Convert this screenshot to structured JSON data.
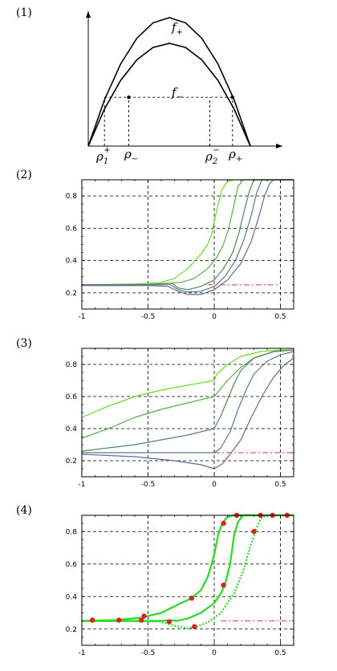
{
  "panels": {
    "p1": {
      "label": "(1)"
    },
    "p2": {
      "label": "(2)"
    },
    "p3": {
      "label": "(3)"
    },
    "p4": {
      "label": "(4)"
    }
  },
  "math_labels": {
    "f_plus": {
      "base": "f",
      "sub": "+"
    },
    "f_minus": {
      "base": "f",
      "sub": "−"
    },
    "rho_1_plus": {
      "base": "ρ",
      "sub": "1",
      "sup": "+"
    },
    "rho_minus": {
      "base": "ρ",
      "sub": "−"
    },
    "rho_2_minus": {
      "base": "ρ",
      "sub": "2",
      "sup": "−"
    },
    "rho_plus": {
      "base": "ρ",
      "sub": "+"
    }
  },
  "colors": {
    "green_bright": "#66dd22",
    "green_mid": "#55b044",
    "green_dark": "#4f8a55",
    "slate": "#5a7a80",
    "violet": "#6a62a4",
    "red_dashdot": "#dd3333",
    "marker_red": "#dd2222",
    "curve_green": "#22dd22"
  },
  "chart_data": [
    {
      "type": "line",
      "panel": "(1)",
      "title": "",
      "xlabel": "",
      "ylabel": "",
      "axes_ticks": false,
      "xlim": [
        0,
        1
      ],
      "ylim": [
        0,
        1
      ],
      "series": [
        {
          "values": [
            [
              0,
              0
            ],
            [
              0.1,
              0.36
            ],
            [
              0.2,
              0.64
            ],
            [
              0.3,
              0.84
            ],
            [
              0.4,
              0.96
            ],
            [
              0.5,
              1.0
            ],
            [
              0.6,
              0.96
            ],
            [
              0.7,
              0.84
            ],
            [
              0.8,
              0.64
            ],
            [
              0.9,
              0.36
            ],
            [
              1,
              0
            ]
          ]
        },
        {
          "values": [
            [
              0,
              0
            ],
            [
              0.1,
              0.288
            ],
            [
              0.2,
              0.512
            ],
            [
              0.3,
              0.672
            ],
            [
              0.4,
              0.768
            ],
            [
              0.5,
              0.8
            ],
            [
              0.6,
              0.768
            ],
            [
              0.7,
              0.672
            ],
            [
              0.8,
              0.512
            ],
            [
              0.9,
              0.288
            ],
            [
              1,
              0
            ]
          ]
        }
      ],
      "level_line": 0.38,
      "markers_x": [
        0.25,
        0.89
      ],
      "vertical_guides_x": [
        0.1,
        0.25,
        0.75,
        0.89
      ]
    },
    {
      "type": "line",
      "panel": "(2)",
      "title": "",
      "xlabel": "",
      "ylabel": "",
      "xlim": [
        -1,
        0.6
      ],
      "ylim": [
        0.1,
        0.9
      ],
      "xticks": [
        "-1",
        "-0.5",
        "0",
        "0.5"
      ],
      "xtick_values": [
        -1,
        -0.5,
        0,
        0.5
      ],
      "yticks": [
        "0.2",
        "0.4",
        "0.6",
        "0.8"
      ],
      "ytick_values": [
        0.2,
        0.4,
        0.6,
        0.8
      ],
      "grid": "dashed",
      "ref_lines": [
        0.9,
        0.25
      ],
      "ref_line_span": [
        -0.05,
        0.48
      ],
      "series": [
        {
          "color": "green_bright",
          "values": [
            [
              -1,
              0.25
            ],
            [
              -0.6,
              0.255
            ],
            [
              -0.4,
              0.265
            ],
            [
              -0.3,
              0.29
            ],
            [
              -0.2,
              0.35
            ],
            [
              -0.1,
              0.44
            ],
            [
              -0.05,
              0.5
            ],
            [
              -0.02,
              0.56
            ],
            [
              0,
              0.64
            ],
            [
              0.03,
              0.75
            ],
            [
              0.06,
              0.84
            ],
            [
              0.1,
              0.89
            ],
            [
              0.15,
              0.9
            ],
            [
              0.6,
              0.9
            ]
          ]
        },
        {
          "color": "green_mid",
          "values": [
            [
              -1,
              0.25
            ],
            [
              -0.5,
              0.253
            ],
            [
              -0.35,
              0.26
            ],
            [
              -0.25,
              0.265
            ],
            [
              -0.15,
              0.29
            ],
            [
              -0.05,
              0.35
            ],
            [
              0.02,
              0.42
            ],
            [
              0.07,
              0.5
            ],
            [
              0.11,
              0.6
            ],
            [
              0.15,
              0.75
            ],
            [
              0.18,
              0.86
            ],
            [
              0.22,
              0.9
            ],
            [
              0.6,
              0.9
            ]
          ]
        },
        {
          "color": "green_dark",
          "values": [
            [
              -1,
              0.25
            ],
            [
              -0.5,
              0.25
            ],
            [
              -0.32,
              0.26
            ],
            [
              -0.27,
              0.23
            ],
            [
              -0.2,
              0.22
            ],
            [
              -0.1,
              0.24
            ],
            [
              0,
              0.28
            ],
            [
              0.07,
              0.35
            ],
            [
              0.14,
              0.45
            ],
            [
              0.19,
              0.58
            ],
            [
              0.23,
              0.72
            ],
            [
              0.27,
              0.84
            ],
            [
              0.3,
              0.9
            ],
            [
              0.6,
              0.9
            ]
          ]
        },
        {
          "color": "slate",
          "values": [
            [
              -1,
              0.25
            ],
            [
              -0.5,
              0.25
            ],
            [
              -0.33,
              0.25
            ],
            [
              -0.27,
              0.22
            ],
            [
              -0.2,
              0.205
            ],
            [
              -0.1,
              0.21
            ],
            [
              0,
              0.24
            ],
            [
              0.08,
              0.3
            ],
            [
              0.16,
              0.4
            ],
            [
              0.22,
              0.52
            ],
            [
              0.28,
              0.68
            ],
            [
              0.32,
              0.82
            ],
            [
              0.36,
              0.9
            ],
            [
              0.6,
              0.9
            ]
          ]
        },
        {
          "color": "violet",
          "values": [
            [
              -1,
              0.245
            ],
            [
              -0.5,
              0.245
            ],
            [
              -0.35,
              0.24
            ],
            [
              -0.27,
              0.21
            ],
            [
              -0.2,
              0.19
            ],
            [
              -0.1,
              0.19
            ],
            [
              0,
              0.22
            ],
            [
              0.1,
              0.28
            ],
            [
              0.2,
              0.38
            ],
            [
              0.28,
              0.52
            ],
            [
              0.34,
              0.68
            ],
            [
              0.38,
              0.8
            ],
            [
              0.42,
              0.88
            ],
            [
              0.45,
              0.9
            ],
            [
              0.6,
              0.9
            ]
          ]
        }
      ]
    },
    {
      "type": "line",
      "panel": "(3)",
      "title": "",
      "xlabel": "",
      "ylabel": "",
      "xlim": [
        -1,
        0.6
      ],
      "ylim": [
        0.1,
        0.9
      ],
      "xticks": [
        "-1",
        "-0.5",
        "0",
        "0.5"
      ],
      "xtick_values": [
        -1,
        -0.5,
        0,
        0.5
      ],
      "yticks": [
        "0.2",
        "0.4",
        "0.6",
        "0.8"
      ],
      "ytick_values": [
        0.2,
        0.4,
        0.6,
        0.8
      ],
      "grid": "dashed",
      "ref_lines": [
        0.9,
        0.25
      ],
      "ref_line_span": [
        0.0,
        0.6
      ],
      "series": [
        {
          "color": "green_bright",
          "values": [
            [
              -1,
              0.47
            ],
            [
              -0.8,
              0.54
            ],
            [
              -0.6,
              0.6
            ],
            [
              -0.4,
              0.64
            ],
            [
              -0.2,
              0.67
            ],
            [
              0,
              0.7
            ],
            [
              0.02,
              0.74
            ],
            [
              0.1,
              0.8
            ],
            [
              0.2,
              0.85
            ],
            [
              0.35,
              0.88
            ],
            [
              0.5,
              0.89
            ],
            [
              0.6,
              0.89
            ]
          ]
        },
        {
          "color": "green_mid",
          "values": [
            [
              -1,
              0.34
            ],
            [
              -0.8,
              0.4
            ],
            [
              -0.6,
              0.47
            ],
            [
              -0.4,
              0.52
            ],
            [
              -0.2,
              0.56
            ],
            [
              0,
              0.6
            ],
            [
              0.02,
              0.62
            ],
            [
              0.1,
              0.7
            ],
            [
              0.2,
              0.78
            ],
            [
              0.3,
              0.84
            ],
            [
              0.45,
              0.88
            ],
            [
              0.6,
              0.89
            ]
          ]
        },
        {
          "color": "green_dark",
          "values": [
            [
              -1,
              0.26
            ],
            [
              -0.8,
              0.28
            ],
            [
              -0.6,
              0.3
            ],
            [
              -0.4,
              0.33
            ],
            [
              -0.2,
              0.36
            ],
            [
              0,
              0.4
            ],
            [
              0.05,
              0.48
            ],
            [
              0.1,
              0.58
            ],
            [
              0.15,
              0.68
            ],
            [
              0.2,
              0.76
            ],
            [
              0.3,
              0.84
            ],
            [
              0.45,
              0.88
            ],
            [
              0.6,
              0.89
            ]
          ]
        },
        {
          "color": "slate",
          "values": [
            [
              -1,
              0.25
            ],
            [
              -0.5,
              0.25
            ],
            [
              0,
              0.25
            ],
            [
              0.05,
              0.28
            ],
            [
              0.12,
              0.38
            ],
            [
              0.18,
              0.52
            ],
            [
              0.24,
              0.64
            ],
            [
              0.3,
              0.74
            ],
            [
              0.4,
              0.82
            ],
            [
              0.5,
              0.86
            ],
            [
              0.6,
              0.88
            ]
          ]
        },
        {
          "color": "violet",
          "values": [
            [
              -1,
              0.24
            ],
            [
              -0.6,
              0.225
            ],
            [
              -0.3,
              0.2
            ],
            [
              -0.1,
              0.175
            ],
            [
              0,
              0.15
            ],
            [
              0.06,
              0.18
            ],
            [
              0.12,
              0.24
            ],
            [
              0.2,
              0.33
            ],
            [
              0.28,
              0.47
            ],
            [
              0.36,
              0.6
            ],
            [
              0.44,
              0.71
            ],
            [
              0.52,
              0.79
            ],
            [
              0.6,
              0.84
            ]
          ]
        }
      ]
    },
    {
      "type": "line",
      "panel": "(4)",
      "title": "",
      "xlabel": "",
      "ylabel": "",
      "xlim": [
        -1,
        0.6
      ],
      "ylim": [
        0.1,
        0.9
      ],
      "xticks": [
        "-1",
        "-0.5",
        "0",
        "0.5"
      ],
      "xtick_values": [
        -1,
        -0.5,
        0,
        0.5
      ],
      "yticks": [
        "0.2",
        "0.4",
        "0.6",
        "0.8"
      ],
      "ytick_values": [
        0.2,
        0.4,
        0.6,
        0.8
      ],
      "grid": "dashed",
      "ref_lines": [
        0.9,
        0.25
      ],
      "ref_line_span": [
        0.05,
        0.6
      ],
      "series": [
        {
          "color": "curve_green",
          "style": "solid",
          "values": [
            [
              -1,
              0.25
            ],
            [
              -0.75,
              0.255
            ],
            [
              -0.55,
              0.27
            ],
            [
              -0.4,
              0.3
            ],
            [
              -0.25,
              0.36
            ],
            [
              -0.17,
              0.39
            ],
            [
              -0.1,
              0.44
            ],
            [
              -0.05,
              0.52
            ],
            [
              -0.02,
              0.6
            ],
            [
              0,
              0.66
            ],
            [
              0.03,
              0.78
            ],
            [
              0.06,
              0.85
            ],
            [
              0.1,
              0.89
            ],
            [
              0.15,
              0.9
            ],
            [
              0.6,
              0.9
            ]
          ]
        },
        {
          "color": "curve_green",
          "style": "solid",
          "values": [
            [
              -1,
              0.25
            ],
            [
              -0.6,
              0.25
            ],
            [
              -0.4,
              0.25
            ],
            [
              -0.33,
              0.255
            ],
            [
              -0.28,
              0.25
            ],
            [
              -0.2,
              0.265
            ],
            [
              -0.1,
              0.3
            ],
            [
              0,
              0.36
            ],
            [
              0.05,
              0.42
            ],
            [
              0.08,
              0.47
            ],
            [
              0.12,
              0.6
            ],
            [
              0.15,
              0.78
            ],
            [
              0.18,
              0.86
            ],
            [
              0.22,
              0.9
            ],
            [
              0.6,
              0.9
            ]
          ]
        },
        {
          "color": "curve_green",
          "style": "dotted",
          "values": [
            [
              -1,
              0.25
            ],
            [
              -0.6,
              0.25
            ],
            [
              -0.4,
              0.245
            ],
            [
              -0.3,
              0.22
            ],
            [
              -0.2,
              0.205
            ],
            [
              -0.15,
              0.21
            ],
            [
              -0.05,
              0.24
            ],
            [
              0.05,
              0.3
            ],
            [
              0.15,
              0.42
            ],
            [
              0.22,
              0.56
            ],
            [
              0.27,
              0.7
            ],
            [
              0.31,
              0.8
            ],
            [
              0.35,
              0.88
            ],
            [
              0.4,
              0.9
            ],
            [
              0.6,
              0.9
            ]
          ]
        }
      ],
      "markers": [
        [
          -0.92,
          0.255
        ],
        [
          -0.72,
          0.255
        ],
        [
          -0.55,
          0.255
        ],
        [
          -0.53,
          0.28
        ],
        [
          -0.34,
          0.245
        ],
        [
          -0.17,
          0.39
        ],
        [
          -0.15,
          0.215
        ],
        [
          0.07,
          0.85
        ],
        [
          0.07,
          0.47
        ],
        [
          0.17,
          0.9
        ],
        [
          0.3,
          0.8
        ],
        [
          0.35,
          0.9
        ],
        [
          0.44,
          0.9
        ],
        [
          0.55,
          0.9
        ]
      ]
    }
  ]
}
